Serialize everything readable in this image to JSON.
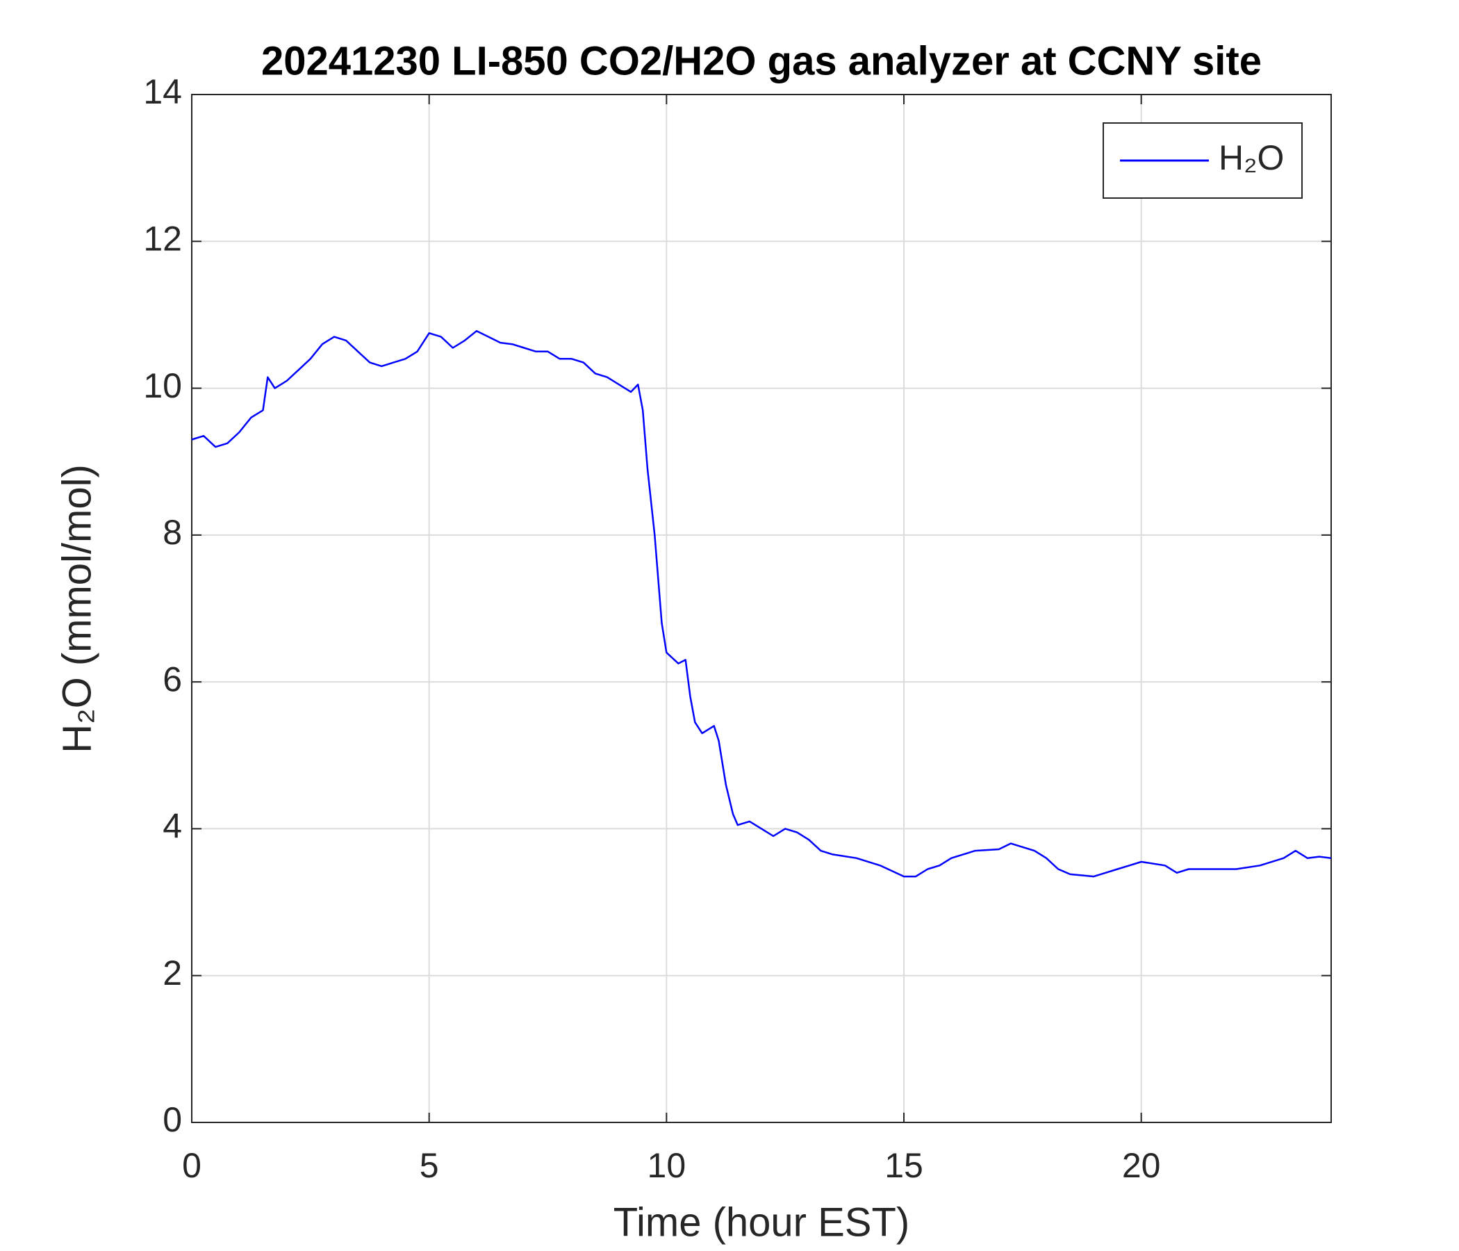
{
  "chart_data": {
    "type": "line",
    "title": "20241230 LI-850 CO2/H2O gas analyzer at CCNY site",
    "x_label": "Time (hour EST)",
    "y_label": "H₂O (mmol/mol)",
    "x": [
      0,
      0.25,
      0.5,
      0.75,
      1,
      1.25,
      1.5,
      1.6,
      1.75,
      2,
      2.25,
      2.5,
      2.75,
      3,
      3.25,
      3.5,
      3.75,
      4,
      4.25,
      4.5,
      4.75,
      5,
      5.25,
      5.5,
      5.75,
      6,
      6.25,
      6.5,
      6.75,
      7,
      7.25,
      7.5,
      7.75,
      8,
      8.25,
      8.5,
      8.75,
      9,
      9.25,
      9.4,
      9.5,
      9.6,
      9.75,
      9.9,
      10,
      10.25,
      10.4,
      10.5,
      10.6,
      10.75,
      11,
      11.1,
      11.25,
      11.4,
      11.5,
      11.75,
      12,
      12.25,
      12.5,
      12.75,
      13,
      13.25,
      13.5,
      14,
      14.5,
      15,
      15.25,
      15.5,
      15.75,
      16,
      16.5,
      17,
      17.25,
      17.5,
      17.75,
      18,
      18.25,
      18.5,
      19,
      19.25,
      19.5,
      19.75,
      20,
      20.5,
      20.75,
      21,
      21.5,
      22,
      22.5,
      23,
      23.25,
      23.5,
      23.75,
      24
    ],
    "series": [
      {
        "name": "H₂O",
        "color": "#0000ff",
        "values": [
          9.3,
          9.35,
          9.2,
          9.25,
          9.4,
          9.6,
          9.7,
          10.15,
          10.0,
          10.1,
          10.25,
          10.4,
          10.6,
          10.7,
          10.65,
          10.5,
          10.35,
          10.3,
          10.35,
          10.4,
          10.5,
          10.75,
          10.7,
          10.55,
          10.65,
          10.78,
          10.7,
          10.62,
          10.6,
          10.55,
          10.5,
          10.5,
          10.4,
          10.4,
          10.35,
          10.2,
          10.15,
          10.05,
          9.95,
          10.05,
          9.7,
          8.9,
          8.0,
          6.8,
          6.4,
          6.25,
          6.3,
          5.8,
          5.45,
          5.3,
          5.4,
          5.2,
          4.6,
          4.2,
          4.05,
          4.1,
          4.0,
          3.9,
          4.0,
          3.95,
          3.85,
          3.7,
          3.65,
          3.6,
          3.5,
          3.35,
          3.35,
          3.45,
          3.5,
          3.6,
          3.7,
          3.72,
          3.8,
          3.75,
          3.7,
          3.6,
          3.45,
          3.38,
          3.35,
          3.4,
          3.45,
          3.5,
          3.55,
          3.5,
          3.4,
          3.45,
          3.45,
          3.45,
          3.5,
          3.6,
          3.7,
          3.6,
          3.62,
          3.6
        ]
      }
    ],
    "xlim": [
      0,
      24
    ],
    "xticks": [
      0,
      5,
      10,
      15,
      20
    ],
    "ylim": [
      0,
      14
    ],
    "yticks": [
      0,
      2,
      4,
      6,
      8,
      10,
      12,
      14
    ],
    "grid": true,
    "legend": "northeast"
  }
}
